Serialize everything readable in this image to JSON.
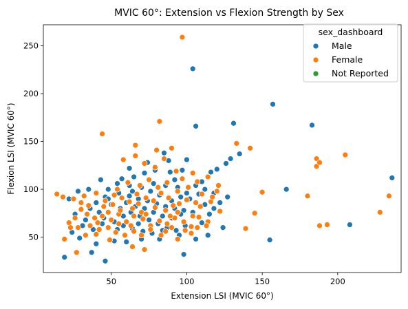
{
  "chart_data": {
    "type": "scatter",
    "title": "MVIC 60°: Extension vs Flexion Strength by Sex",
    "xlabel": "Extension LSI (MVIC 60°)",
    "ylabel": "Flexion LSI (MVIC 60°)",
    "xlim": [
      5,
      242
    ],
    "ylim": [
      13,
      272
    ],
    "x_ticks": [
      50,
      100,
      150,
      200
    ],
    "y_ticks": [
      50,
      100,
      150,
      200,
      250
    ],
    "grid": false,
    "legend": {
      "title": "sex_dashboard",
      "position": "top-right",
      "entries": [
        {
          "label": "Male",
          "color": "#1f77b4"
        },
        {
          "label": "Female",
          "color": "#ff7f0e"
        },
        {
          "label": "Not Reported",
          "color": "#2ca02c"
        }
      ]
    },
    "series": [
      {
        "name": "Male",
        "color": "#1f77b4",
        "points": [
          [
            104,
            226
          ],
          [
            157,
            189
          ],
          [
            183,
            167
          ],
          [
            131,
            169
          ],
          [
            106,
            166
          ],
          [
            236,
            112
          ],
          [
            166,
            100
          ],
          [
            155,
            47
          ],
          [
            208,
            63
          ],
          [
            19,
            29
          ],
          [
            46,
            25
          ],
          [
            98,
            32
          ],
          [
            37,
            34
          ],
          [
            135,
            137
          ],
          [
            129,
            132
          ],
          [
            126,
            127
          ],
          [
            120,
            121
          ],
          [
            116,
            118
          ],
          [
            127,
            92
          ],
          [
            122,
            86
          ],
          [
            118,
            80
          ],
          [
            115,
            74
          ],
          [
            110,
            65
          ],
          [
            124,
            60
          ],
          [
            114,
            52
          ],
          [
            106,
            48
          ],
          [
            97,
            120
          ],
          [
            89,
            118
          ],
          [
            79,
            120
          ],
          [
            72,
            117
          ],
          [
            65,
            113
          ],
          [
            57,
            111
          ],
          [
            43,
            110
          ],
          [
            35,
            100
          ],
          [
            28,
            98
          ],
          [
            22,
            90
          ],
          [
            26,
            74
          ],
          [
            31,
            62
          ],
          [
            24,
            55
          ],
          [
            29,
            49
          ],
          [
            40,
            43
          ],
          [
            52,
            46
          ],
          [
            60,
            45
          ],
          [
            70,
            48
          ],
          [
            82,
            48
          ],
          [
            95,
            52
          ],
          [
            48,
            100
          ],
          [
            55,
            96
          ],
          [
            62,
            93
          ],
          [
            68,
            90
          ],
          [
            74,
            88
          ],
          [
            80,
            85
          ],
          [
            86,
            82
          ],
          [
            92,
            80
          ],
          [
            98,
            78
          ],
          [
            104,
            76
          ],
          [
            50,
            84
          ],
          [
            56,
            80
          ],
          [
            63,
            76
          ],
          [
            69,
            72
          ],
          [
            75,
            68
          ],
          [
            81,
            64
          ],
          [
            87,
            60
          ],
          [
            93,
            57
          ],
          [
            99,
            62
          ],
          [
            45,
            70
          ],
          [
            52,
            66
          ],
          [
            58,
            62
          ],
          [
            64,
            59
          ],
          [
            71,
            56
          ],
          [
            77,
            54
          ],
          [
            84,
            57
          ],
          [
            90,
            70
          ],
          [
            96,
            74
          ],
          [
            102,
            90
          ],
          [
            108,
            95
          ],
          [
            112,
            100
          ],
          [
            86,
            104
          ],
          [
            78,
            106
          ],
          [
            70,
            102
          ],
          [
            62,
            104
          ],
          [
            54,
            106
          ],
          [
            46,
            92
          ],
          [
            40,
            86
          ],
          [
            36,
            80
          ],
          [
            42,
            76
          ],
          [
            48,
            90
          ],
          [
            60,
            86
          ],
          [
            66,
            82
          ],
          [
            72,
            80
          ],
          [
            78,
            76
          ],
          [
            84,
            72
          ],
          [
            90,
            88
          ],
          [
            96,
            92
          ],
          [
            100,
            96
          ],
          [
            106,
            104
          ],
          [
            110,
            108
          ],
          [
            74,
            128
          ],
          [
            88,
            130
          ],
          [
            100,
            131
          ],
          [
            64,
            98
          ],
          [
            58,
            72
          ],
          [
            82,
            94
          ],
          [
            94,
            102
          ],
          [
            68,
            64
          ],
          [
            76,
            98
          ],
          [
            54,
            58
          ],
          [
            44,
            64
          ],
          [
            38,
            58
          ],
          [
            33,
            68
          ],
          [
            85,
            138
          ],
          [
            92,
            110
          ],
          [
            62,
            122
          ],
          [
            118,
            96
          ],
          [
            112,
            84
          ]
        ]
      },
      {
        "name": "Female",
        "color": "#ff7f0e",
        "points": [
          [
            97,
            259
          ],
          [
            82,
            171
          ],
          [
            44,
            158
          ],
          [
            133,
            148
          ],
          [
            142,
            143
          ],
          [
            205,
            136
          ],
          [
            186,
            132
          ],
          [
            186,
            124
          ],
          [
            188,
            128
          ],
          [
            180,
            93
          ],
          [
            234,
            93
          ],
          [
            228,
            76
          ],
          [
            188,
            62
          ],
          [
            193,
            63
          ],
          [
            145,
            75
          ],
          [
            150,
            97
          ],
          [
            139,
            59
          ],
          [
            14,
            95
          ],
          [
            18,
            92
          ],
          [
            22,
            65
          ],
          [
            19,
            48
          ],
          [
            23,
            60
          ],
          [
            27,
            34
          ],
          [
            33,
            52
          ],
          [
            40,
            53
          ],
          [
            49,
            47
          ],
          [
            64,
            40
          ],
          [
            72,
            37
          ],
          [
            86,
            56
          ],
          [
            94,
            48
          ],
          [
            103,
            54
          ],
          [
            66,
            135
          ],
          [
            66,
            146
          ],
          [
            80,
            141
          ],
          [
            90,
            143
          ],
          [
            58,
            131
          ],
          [
            72,
            127
          ],
          [
            79,
            123
          ],
          [
            85,
            132
          ],
          [
            93,
            119
          ],
          [
            104,
            117
          ],
          [
            114,
            113
          ],
          [
            97,
            111
          ],
          [
            107,
            108
          ],
          [
            121,
            104
          ],
          [
            25,
            90
          ],
          [
            30,
            86
          ],
          [
            35,
            83
          ],
          [
            40,
            96
          ],
          [
            46,
            88
          ],
          [
            51,
            84
          ],
          [
            57,
            91
          ],
          [
            62,
            87
          ],
          [
            67,
            95
          ],
          [
            73,
            91
          ],
          [
            78,
            88
          ],
          [
            83,
            96
          ],
          [
            88,
            91
          ],
          [
            95,
            85
          ],
          [
            100,
            89
          ],
          [
            109,
            82
          ],
          [
            116,
            87
          ],
          [
            122,
            77
          ],
          [
            30,
            79
          ],
          [
            34,
            74
          ],
          [
            39,
            70
          ],
          [
            44,
            72
          ],
          [
            50,
            68
          ],
          [
            55,
            74
          ],
          [
            60,
            66
          ],
          [
            65,
            72
          ],
          [
            71,
            69
          ],
          [
            76,
            62
          ],
          [
            82,
            67
          ],
          [
            87,
            64
          ],
          [
            92,
            70
          ],
          [
            98,
            66
          ],
          [
            103,
            61
          ],
          [
            108,
            71
          ],
          [
            114,
            66
          ],
          [
            28,
            60
          ],
          [
            36,
            62
          ],
          [
            42,
            58
          ],
          [
            48,
            60
          ],
          [
            53,
            55
          ],
          [
            59,
            52
          ],
          [
            65,
            56
          ],
          [
            70,
            52
          ],
          [
            76,
            58
          ],
          [
            83,
            52
          ],
          [
            90,
            60
          ],
          [
            99,
            57
          ],
          [
            107,
            60
          ],
          [
            113,
            62
          ],
          [
            26,
            70
          ],
          [
            32,
            93
          ],
          [
            54,
            100
          ],
          [
            61,
            107
          ],
          [
            69,
            104
          ],
          [
            75,
            110
          ],
          [
            81,
            102
          ],
          [
            87,
            107
          ],
          [
            94,
            98
          ],
          [
            101,
            102
          ],
          [
            110,
            95
          ],
          [
            117,
            92
          ],
          [
            45,
            82
          ],
          [
            56,
            78
          ],
          [
            64,
            80
          ],
          [
            70,
            76
          ],
          [
            86,
            78
          ],
          [
            94,
            76
          ],
          [
            104,
            72
          ],
          [
            41,
            65
          ],
          [
            48,
            76
          ],
          [
            55,
            64
          ],
          [
            63,
            62
          ],
          [
            68,
            85
          ],
          [
            79,
            81
          ],
          [
            91,
            83
          ],
          [
            106,
            86
          ],
          [
            120,
            98
          ],
          [
            52,
            94
          ],
          [
            73,
            74
          ],
          [
            89,
            72
          ]
        ]
      },
      {
        "name": "Not Reported",
        "color": "#2ca02c",
        "points": []
      }
    ]
  }
}
